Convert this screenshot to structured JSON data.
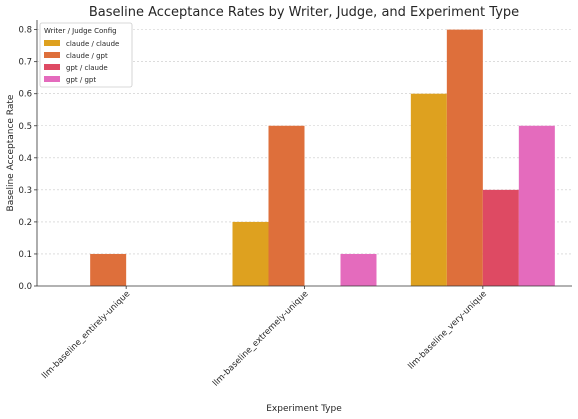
{
  "chart_data": {
    "type": "bar",
    "title": "Baseline Acceptance Rates by Writer, Judge, and Experiment Type",
    "xlabel": "Experiment Type",
    "ylabel": "Baseline Acceptance Rate",
    "ylim": [
      0,
      0.83
    ],
    "yticks": [
      "0.0",
      "0.1",
      "0.2",
      "0.3",
      "0.4",
      "0.5",
      "0.6",
      "0.7",
      "0.8"
    ],
    "grid": true,
    "categories": [
      "llm-baseline_entirely-unique",
      "llm-baseline_extremely-unique",
      "llm-baseline_very-unique"
    ],
    "legend": {
      "title": "Writer / Judge Config",
      "placement": "top-left"
    },
    "series": [
      {
        "name": "claude / claude",
        "color": "#dea11f",
        "values": [
          0.0,
          0.2,
          0.6
        ]
      },
      {
        "name": "claude / gpt",
        "color": "#de6f3b",
        "values": [
          0.1,
          0.5,
          0.8
        ]
      },
      {
        "name": "gpt / claude",
        "color": "#de4a63",
        "values": [
          0.0,
          0.0,
          0.3
        ]
      },
      {
        "name": "gpt / gpt",
        "color": "#e46bbd",
        "values": [
          0.0,
          0.1,
          0.5
        ]
      }
    ]
  }
}
